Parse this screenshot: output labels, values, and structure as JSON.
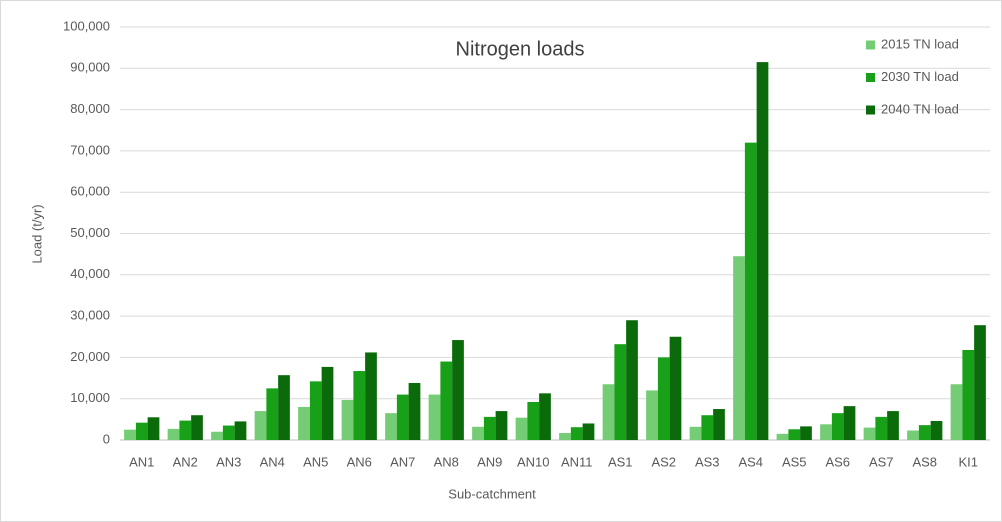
{
  "chart_data": {
    "type": "bar",
    "title": "Nitrogen loads",
    "x_label": "Sub-catchment",
    "y_label": "Load (t/yr)",
    "categories": [
      "AN1",
      "AN2",
      "AN3",
      "AN4",
      "AN5",
      "AN6",
      "AN7",
      "AN8",
      "AN9",
      "AN10",
      "AN11",
      "AS1",
      "AS2",
      "AS3",
      "AS4",
      "AS5",
      "AS6",
      "AS7",
      "AS8",
      "KI1"
    ],
    "series": [
      {
        "name": "2015 TN load",
        "color": "#74cc74",
        "values": [
          2500,
          2700,
          2000,
          7000,
          8000,
          9700,
          6500,
          11000,
          3200,
          5400,
          1700,
          13500,
          12000,
          3200,
          44500,
          1500,
          3800,
          3000,
          2300,
          13500
        ]
      },
      {
        "name": "2030 TN load",
        "color": "#19a019",
        "values": [
          4200,
          4700,
          3500,
          12500,
          14200,
          16700,
          11000,
          19000,
          5600,
          9200,
          3100,
          23200,
          20000,
          6000,
          72000,
          2600,
          6500,
          5600,
          3600,
          21800
        ]
      },
      {
        "name": "2040 TN load",
        "color": "#0b6b0b",
        "values": [
          5500,
          6000,
          4500,
          15700,
          17700,
          21200,
          13800,
          24200,
          7000,
          11300,
          4000,
          29000,
          25000,
          7500,
          91500,
          3300,
          8200,
          7000,
          4600,
          27800
        ]
      }
    ],
    "ylim": [
      0,
      100000
    ],
    "yticks": [
      0,
      {
        "value": 10000,
        "label": "10,000"
      },
      {
        "value": 20000,
        "label": "20,000"
      },
      {
        "value": 30000,
        "label": "30,000"
      },
      {
        "value": 40000,
        "label": "40,000"
      },
      {
        "value": 50000,
        "label": "50,000"
      },
      {
        "value": 60000,
        "label": "60,000"
      },
      {
        "value": 70000,
        "label": "70,000"
      },
      {
        "value": 80000,
        "label": "80,000"
      },
      {
        "value": 90000,
        "label": "90,000"
      },
      {
        "value": 100000,
        "label": "100,000"
      }
    ],
    "grid": true,
    "legend": "top-right"
  }
}
